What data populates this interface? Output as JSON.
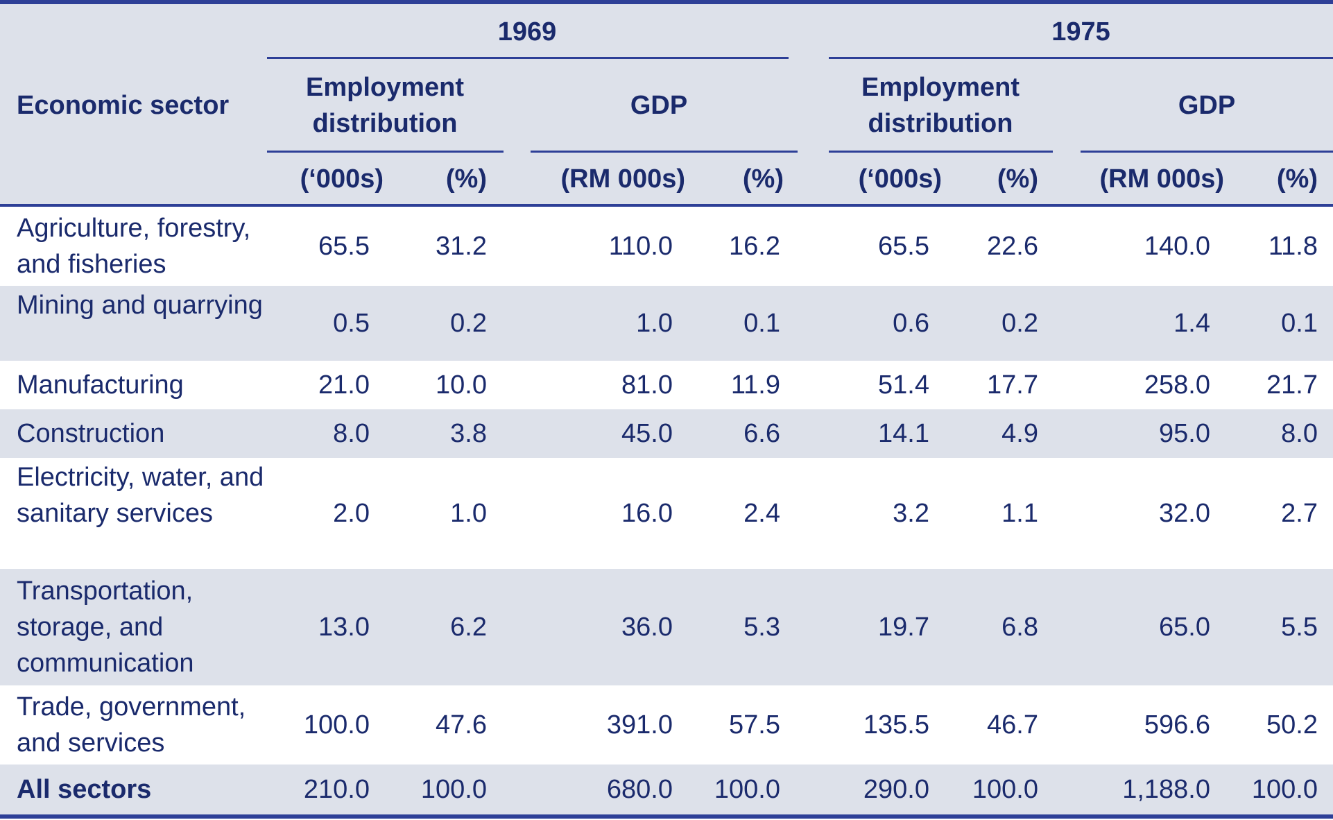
{
  "header": {
    "sector_label": "Economic sector",
    "years": [
      "1969",
      "1975"
    ],
    "groups": [
      "Employment distribution",
      "GDP",
      "Employment distribution",
      "GDP"
    ],
    "units": [
      "(‘000s)",
      "(%)",
      "(RM 000s)",
      "(%)",
      "(‘000s)",
      "(%)",
      "(RM 000s)",
      "(%)"
    ]
  },
  "rows": [
    {
      "sector": "Agriculture, forestry, and fisheries",
      "values": [
        "65.5",
        "31.2",
        "110.0",
        "16.2",
        "65.5",
        "22.6",
        "140.0",
        "11.8"
      ]
    },
    {
      "sector": "Mining and quarrying",
      "values": [
        "0.5",
        "0.2",
        "1.0",
        "0.1",
        "0.6",
        "0.2",
        "1.4",
        "0.1"
      ]
    },
    {
      "sector": "Manufacturing",
      "values": [
        "21.0",
        "10.0",
        "81.0",
        "11.9",
        "51.4",
        "17.7",
        "258.0",
        "21.7"
      ]
    },
    {
      "sector": "Construction",
      "values": [
        "8.0",
        "3.8",
        "45.0",
        "6.6",
        "14.1",
        "4.9",
        "95.0",
        "8.0"
      ]
    },
    {
      "sector": "Electricity, water, and sanitary services",
      "values": [
        "2.0",
        "1.0",
        "16.0",
        "2.4",
        "3.2",
        "1.1",
        "32.0",
        "2.7"
      ]
    },
    {
      "sector": "Transportation, storage, and communication",
      "values": [
        "13.0",
        "6.2",
        "36.0",
        "5.3",
        "19.7",
        "6.8",
        "65.0",
        "5.5"
      ]
    },
    {
      "sector": "Trade, government, and services",
      "values": [
        "100.0",
        "47.6",
        "391.0",
        "57.5",
        "135.5",
        "46.7",
        "596.6",
        "50.2"
      ]
    }
  ],
  "total": {
    "sector": "All sectors",
    "values": [
      "210.0",
      "100.0",
      "680.0",
      "100.0",
      "290.0",
      "100.0",
      "1,188.0",
      "100.0"
    ]
  },
  "colors": {
    "text": "#1a2a6c",
    "rule": "#2d3f97",
    "shade": "#dde1ea"
  }
}
